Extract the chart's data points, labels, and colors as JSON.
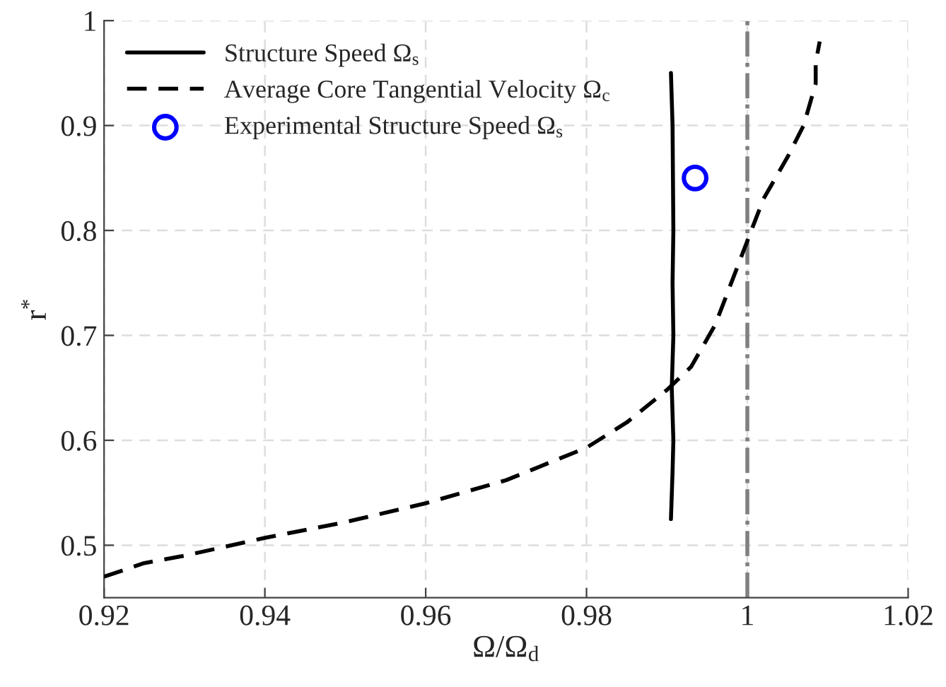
{
  "chart_data": {
    "type": "line",
    "xlabel": "Ω/Ω$_{d}$",
    "ylabel": "r$^{*}$",
    "xlim": [
      0.92,
      1.02
    ],
    "xticks": [
      0.92,
      0.94,
      0.96,
      0.98,
      1,
      1.02
    ],
    "ylim": [
      0.45,
      1
    ],
    "yticks": [
      0.5,
      0.6,
      0.7,
      0.8,
      0.9,
      1
    ],
    "grid": true,
    "legend": "top left",
    "series": [
      {
        "name": "Structure Speed Ω$_{s}$",
        "line_style": "solid",
        "color": "#000000",
        "x": [
          0.9905,
          0.9907,
          0.9908,
          0.9906,
          0.9908,
          0.9907,
          0.9908,
          0.9907,
          0.9905
        ],
        "values": [
          0.525,
          0.57,
          0.6,
          0.65,
          0.7,
          0.75,
          0.8,
          0.9,
          0.95
        ]
      },
      {
        "name": "Average Core Tangential Velocity Ω$_{c}$",
        "line_style": "dashed",
        "color": "#000000",
        "x": [
          0.92,
          0.925,
          0.93,
          0.94,
          0.95,
          0.96,
          0.97,
          0.98,
          0.985,
          0.99,
          0.993,
          0.996,
          0.998,
          1.0,
          1.002,
          1.005,
          1.007,
          1.0085,
          1.0085,
          1.009
        ],
        "values": [
          0.47,
          0.483,
          0.49,
          0.507,
          0.522,
          0.54,
          0.562,
          0.593,
          0.617,
          0.648,
          0.67,
          0.71,
          0.75,
          0.79,
          0.83,
          0.87,
          0.9,
          0.94,
          0.96,
          0.98
        ]
      },
      {
        "name": "Experimental Structure Speed Ω$_{s}$",
        "type": "scatter",
        "marker": "circle",
        "color": "#0000ff",
        "x": [
          0.9935
        ],
        "values": [
          0.85
        ]
      }
    ],
    "ref_lines": [
      {
        "axis": "x",
        "value": 1,
        "color": "#808080",
        "line_style": "dashdot"
      }
    ]
  }
}
